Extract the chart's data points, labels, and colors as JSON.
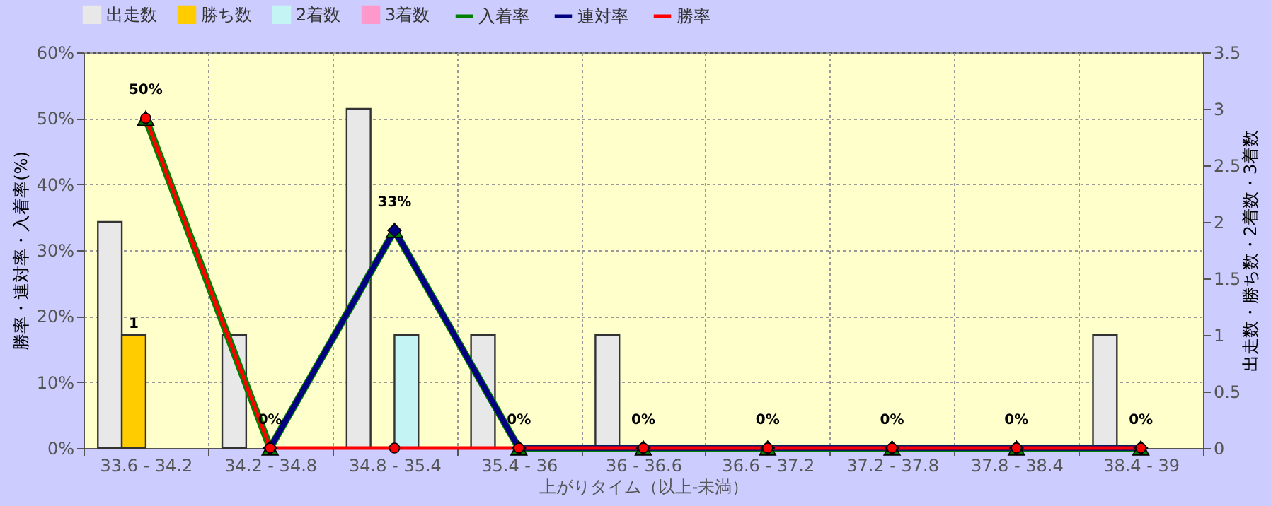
{
  "chart_data": {
    "type": "bar",
    "categories": [
      "33.6 - 34.2",
      "34.2 - 34.8",
      "34.8 - 35.4",
      "35.4 - 36",
      "36 - 36.6",
      "36.6 - 37.2",
      "37.2 - 37.8",
      "37.8 - 38.4",
      "38.4 - 39"
    ],
    "xlabel": "上がりタイム（以上-未満）",
    "ylabel": "勝率・連対率・入着率(%)",
    "y2label": "出走数・勝ち数・2着数・3着数",
    "ylim": [
      0,
      60
    ],
    "yticks": [
      {
        "value": 0,
        "label": "0%"
      },
      {
        "value": 10,
        "label": "10%"
      },
      {
        "value": 20,
        "label": "20%"
      },
      {
        "value": 30,
        "label": "30%"
      },
      {
        "value": 40,
        "label": "40%"
      },
      {
        "value": 50,
        "label": "50%"
      },
      {
        "value": 60,
        "label": "60%"
      }
    ],
    "y2lim": [
      0,
      3.5
    ],
    "y2ticks": [
      0,
      0.5,
      1,
      1.5,
      2,
      2.5,
      3,
      3.5
    ],
    "grid": true,
    "legend": "top",
    "line_style": "solid",
    "series": [
      {
        "name": "出走数",
        "axis": "y2",
        "color": "#e8e8e8",
        "values": [
          2,
          1,
          3,
          1,
          1,
          0,
          0,
          0,
          1
        ]
      },
      {
        "name": "勝ち数",
        "axis": "y2",
        "color": "#ffcc00",
        "values": [
          1,
          0,
          0,
          0,
          0,
          0,
          0,
          0,
          0
        ],
        "value_labels": [
          "1",
          null,
          null,
          null,
          null,
          null,
          null,
          null,
          null
        ]
      },
      {
        "name": "2着数",
        "axis": "y2",
        "color": "#c4f4f4",
        "values": [
          0,
          0,
          1,
          0,
          0,
          0,
          0,
          0,
          0
        ]
      },
      {
        "name": "3着数",
        "axis": "y2",
        "color": "#ff99cc",
        "values": [
          0,
          0,
          0,
          0,
          0,
          0,
          0,
          0,
          0
        ]
      },
      {
        "name": "入着率",
        "type": "line",
        "marker": "triangle",
        "color": "#008000",
        "values": [
          50,
          0,
          33,
          0,
          0,
          0,
          0,
          0,
          0
        ],
        "value_labels": [
          "50%",
          "0%",
          "33%",
          "0%",
          "0%",
          "0%",
          "0%",
          "0%",
          "0%"
        ]
      },
      {
        "name": "連対率",
        "type": "line",
        "marker": "diamond",
        "color": "#000080",
        "values": [
          null,
          0,
          33,
          0,
          0,
          0,
          0,
          0,
          0
        ]
      },
      {
        "name": "勝率",
        "type": "line",
        "marker": "circle",
        "color": "#ff0000",
        "values": [
          50,
          0,
          0,
          0,
          0,
          0,
          0,
          0,
          0
        ]
      }
    ]
  }
}
